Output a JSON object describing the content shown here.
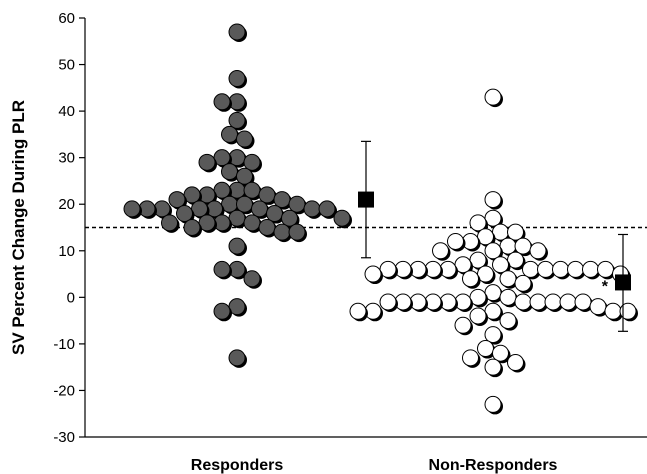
{
  "chart_data": {
    "type": "scatter",
    "title": "",
    "xlabel": "",
    "ylabel": "SV Percent Change During PLR",
    "ylim": [
      -30,
      60
    ],
    "yticks": [
      -30,
      -20,
      -10,
      0,
      10,
      20,
      30,
      40,
      50,
      60
    ],
    "categories": [
      "Responders",
      "Non-Responders"
    ],
    "threshold": 15,
    "grid": false,
    "legend": "none",
    "series": [
      {
        "category": "Responders",
        "marker": "filled-circle",
        "color": "#595959",
        "values": [
          57,
          47,
          42,
          42,
          38,
          35,
          34,
          30,
          30,
          29,
          29,
          27,
          26,
          23,
          23,
          23,
          22,
          22,
          22,
          21,
          21,
          20,
          20,
          20,
          19,
          19,
          19,
          19,
          19,
          19,
          19,
          19,
          18,
          18,
          17,
          17,
          17,
          16,
          16,
          16,
          16,
          15,
          15,
          14,
          14,
          11,
          6,
          6,
          4,
          -2,
          -3,
          -13
        ]
      },
      {
        "category": "Non-Responders",
        "marker": "open-circle",
        "color": "#ffffff",
        "values": [
          43,
          21,
          17,
          16,
          14,
          14,
          13,
          12,
          12,
          11,
          11,
          10,
          10,
          10,
          8,
          8,
          7,
          7,
          6,
          6,
          6,
          6,
          6,
          6,
          6,
          6,
          6,
          6,
          6,
          5,
          5,
          5,
          4,
          4,
          3,
          1,
          0,
          0,
          -1,
          -1,
          -1,
          -1,
          -1,
          -1,
          -1,
          -1,
          -1,
          -1,
          -1,
          -2,
          -3,
          -3,
          -3,
          -3,
          -3,
          -4,
          -5,
          -6,
          -8,
          -11,
          -12,
          -13,
          -14,
          -15,
          -23
        ]
      }
    ],
    "summary": [
      {
        "category": "Responders",
        "mean": 21,
        "error_upper": 33.5,
        "error_lower": 8.5,
        "annotation": ""
      },
      {
        "category": "Non-Responders",
        "mean": 3.2,
        "error_upper": 13.5,
        "error_lower": -7.3,
        "annotation": "*"
      }
    ]
  }
}
